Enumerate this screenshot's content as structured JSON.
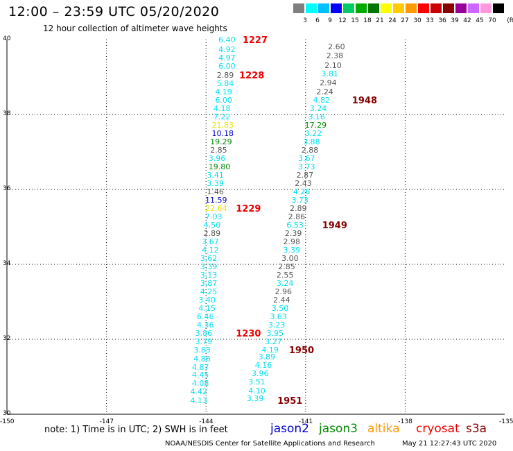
{
  "header": {
    "title": "12:00 – 23:59 UTC 05/20/2020",
    "subtitle": "12 hour collection of altimeter wave heights"
  },
  "legend": {
    "bins": [
      {
        "label": "3",
        "color": "#7f7f7f"
      },
      {
        "label": "6",
        "color": "#00ffff"
      },
      {
        "label": "9",
        "color": "#00bfff"
      },
      {
        "label": "12",
        "color": "#0000ff"
      },
      {
        "label": "15",
        "color": "#00cc66"
      },
      {
        "label": "18",
        "color": "#00aa00"
      },
      {
        "label": "21",
        "color": "#007700"
      },
      {
        "label": "24",
        "color": "#ffff00"
      },
      {
        "label": "27",
        "color": "#ffcc00"
      },
      {
        "label": "30",
        "color": "#ff9900"
      },
      {
        "label": "33",
        "color": "#ff0000"
      },
      {
        "label": "36",
        "color": "#cc0000"
      },
      {
        "label": "39",
        "color": "#880000"
      },
      {
        "label": "42",
        "color": "#990099"
      },
      {
        "label": "45",
        "color": "#cc66ff"
      },
      {
        "label": "70",
        "color": "#ff99dd"
      },
      {
        "label": "",
        "color": "#000000"
      }
    ],
    "unit": "(ft)"
  },
  "axes": {
    "lat_labels": [
      "40",
      "38",
      "36",
      "34",
      "32",
      "30"
    ],
    "lon_labels": [
      "-150",
      "-147",
      "-144",
      "-141",
      "-138",
      "-135"
    ]
  },
  "colors": {
    "gray": "#555555",
    "cyan": "#00e0f0",
    "yellow": "#e6e600",
    "blue": "#0000cc",
    "green": "#008800",
    "red": "#ee0000",
    "darkred": "#880000"
  },
  "tracks": [
    {
      "time_tag": {
        "text": "1227",
        "color": "red",
        "lat": 39.99,
        "lon": -142.9
      },
      "points": [
        {
          "v": "6.40",
          "c": "cyan",
          "lat": 39.99,
          "lon": -143.5
        },
        {
          "v": "4.92",
          "c": "cyan",
          "lat": 39.72,
          "lon": -143.5
        },
        {
          "v": "4.97",
          "c": "cyan",
          "lat": 39.5,
          "lon": -143.5
        },
        {
          "v": "6.00",
          "c": "cyan",
          "lat": 39.27,
          "lon": -143.5
        },
        {
          "v": "2.89",
          "c": "gray",
          "lat": 39.04,
          "lon": -143.55
        },
        {
          "v": "5.84",
          "c": "cyan",
          "lat": 38.82,
          "lon": -143.55
        },
        {
          "v": "4.19",
          "c": "cyan",
          "lat": 38.6,
          "lon": -143.6
        },
        {
          "v": "6.00",
          "c": "cyan",
          "lat": 38.37,
          "lon": -143.6
        },
        {
          "v": "4.18",
          "c": "cyan",
          "lat": 38.15,
          "lon": -143.65
        },
        {
          "v": "7.22",
          "c": "cyan",
          "lat": 37.93,
          "lon": -143.65
        },
        {
          "v": "21.83",
          "c": "yellow",
          "lat": 37.7,
          "lon": -143.7
        },
        {
          "v": "10.18",
          "c": "blue",
          "lat": 37.49,
          "lon": -143.7
        },
        {
          "v": "19.29",
          "c": "green",
          "lat": 37.26,
          "lon": -143.75
        },
        {
          "v": "2.85",
          "c": "gray",
          "lat": 37.04,
          "lon": -143.75
        },
        {
          "v": "3.96",
          "c": "cyan",
          "lat": 36.82,
          "lon": -143.8
        },
        {
          "v": "19.80",
          "c": "green",
          "lat": 36.59,
          "lon": -143.8
        },
        {
          "v": "3.41",
          "c": "cyan",
          "lat": 36.37,
          "lon": -143.85
        },
        {
          "v": "3.39",
          "c": "cyan",
          "lat": 36.15,
          "lon": -143.85
        },
        {
          "v": "1.46",
          "c": "gray",
          "lat": 35.93,
          "lon": -143.85
        },
        {
          "v": "11.59",
          "c": "blue",
          "lat": 35.71,
          "lon": -143.9
        }
      ]
    },
    {
      "time_tag": {
        "text": "1228",
        "color": "red",
        "lat": 39.04,
        "lon": -143.0
      },
      "points": []
    },
    {
      "time_tag": {
        "text": "1229",
        "color": "red",
        "lat": 35.49,
        "lon": -143.1
      },
      "points": [
        {
          "v": "22.64",
          "c": "yellow",
          "lat": 35.49,
          "lon": -143.9
        },
        {
          "v": "7.03",
          "c": "cyan",
          "lat": 35.26,
          "lon": -143.9
        },
        {
          "v": "4.50",
          "c": "cyan",
          "lat": 35.04,
          "lon": -143.95
        },
        {
          "v": "2.89",
          "c": "gray",
          "lat": 34.82,
          "lon": -143.95
        },
        {
          "v": "3.67",
          "c": "cyan",
          "lat": 34.6,
          "lon": -144.0
        },
        {
          "v": "4.12",
          "c": "cyan",
          "lat": 34.37,
          "lon": -144.0
        },
        {
          "v": "3.62",
          "c": "cyan",
          "lat": 34.15,
          "lon": -144.05
        },
        {
          "v": "3.39",
          "c": "cyan",
          "lat": 33.93,
          "lon": -144.05
        },
        {
          "v": "3.13",
          "c": "cyan",
          "lat": 33.7,
          "lon": -144.05
        },
        {
          "v": "3.87",
          "c": "cyan",
          "lat": 33.48,
          "lon": -144.05
        },
        {
          "v": "4.25",
          "c": "cyan",
          "lat": 33.26,
          "lon": -144.05
        },
        {
          "v": "3.40",
          "c": "cyan",
          "lat": 33.04,
          "lon": -144.1
        },
        {
          "v": "4.15",
          "c": "cyan",
          "lat": 32.81,
          "lon": -144.1
        },
        {
          "v": "6.46",
          "c": "cyan",
          "lat": 32.59,
          "lon": -144.15
        },
        {
          "v": "4.36",
          "c": "cyan",
          "lat": 32.37,
          "lon": -144.15
        },
        {
          "v": "3.86",
          "c": "cyan",
          "lat": 32.14,
          "lon": -144.2
        }
      ]
    },
    {
      "time_tag": {
        "text": "1230",
        "color": "red",
        "lat": 32.14,
        "lon": -143.1
      },
      "points": [
        {
          "v": "3.79",
          "c": "cyan",
          "lat": 31.92,
          "lon": -144.2
        },
        {
          "v": "3.83",
          "c": "cyan",
          "lat": 31.7,
          "lon": -144.25
        },
        {
          "v": "4.86",
          "c": "cyan",
          "lat": 31.47,
          "lon": -144.25
        },
        {
          "v": "4.87",
          "c": "cyan",
          "lat": 31.25,
          "lon": -144.3
        },
        {
          "v": "4.45",
          "c": "cyan",
          "lat": 31.03,
          "lon": -144.3
        },
        {
          "v": "4.08",
          "c": "cyan",
          "lat": 30.81,
          "lon": -144.3
        },
        {
          "v": "4.42",
          "c": "cyan",
          "lat": 30.59,
          "lon": -144.35
        },
        {
          "v": "4.13",
          "c": "cyan",
          "lat": 30.36,
          "lon": -144.35
        }
      ]
    },
    {
      "time_tag": {
        "text": "1948",
        "color": "darkred",
        "lat": 38.37,
        "lon": -139.6
      },
      "points": [
        {
          "v": "2.60",
          "c": "gray",
          "lat": 39.79,
          "lon": -140.2
        },
        {
          "v": "2.38",
          "c": "gray",
          "lat": 39.55,
          "lon": -140.25
        },
        {
          "v": "2.10",
          "c": "gray",
          "lat": 39.3,
          "lon": -140.3
        },
        {
          "v": "3.81",
          "c": "cyan",
          "lat": 39.08,
          "lon": -140.4
        },
        {
          "v": "2.94",
          "c": "gray",
          "lat": 38.84,
          "lon": -140.45
        },
        {
          "v": "2.24",
          "c": "gray",
          "lat": 38.6,
          "lon": -140.55
        },
        {
          "v": "4.82",
          "c": "cyan",
          "lat": 38.37,
          "lon": -140.65
        },
        {
          "v": "3.24",
          "c": "cyan",
          "lat": 38.15,
          "lon": -140.75
        },
        {
          "v": "3.16",
          "c": "cyan",
          "lat": 37.93,
          "lon": -140.8
        },
        {
          "v": "17.29",
          "c": "green",
          "lat": 37.71,
          "lon": -140.9
        },
        {
          "v": "3.22",
          "c": "cyan",
          "lat": 37.48,
          "lon": -140.9
        },
        {
          "v": "3.88",
          "c": "cyan",
          "lat": 37.26,
          "lon": -140.95
        },
        {
          "v": "2.88",
          "c": "gray",
          "lat": 37.04,
          "lon": -141.0
        },
        {
          "v": "3.67",
          "c": "cyan",
          "lat": 36.82,
          "lon": -141.1
        },
        {
          "v": "3.73",
          "c": "cyan",
          "lat": 36.59,
          "lon": -141.1
        },
        {
          "v": "2.87",
          "c": "gray",
          "lat": 36.37,
          "lon": -141.15
        },
        {
          "v": "2.43",
          "c": "gray",
          "lat": 36.15,
          "lon": -141.2
        },
        {
          "v": "4.26",
          "c": "cyan",
          "lat": 35.93,
          "lon": -141.25
        },
        {
          "v": "3.73",
          "c": "cyan",
          "lat": 35.71,
          "lon": -141.3
        },
        {
          "v": "2.89",
          "c": "gray",
          "lat": 35.49,
          "lon": -141.35
        },
        {
          "v": "2.86",
          "c": "gray",
          "lat": 35.26,
          "lon": -141.4
        }
      ]
    },
    {
      "time_tag": {
        "text": "1949",
        "color": "darkred",
        "lat": 35.04,
        "lon": -140.5
      },
      "points": [
        {
          "v": "6.53",
          "c": "cyan",
          "lat": 35.04,
          "lon": -141.45
        },
        {
          "v": "2.39",
          "c": "gray",
          "lat": 34.82,
          "lon": -141.5
        },
        {
          "v": "2.98",
          "c": "gray",
          "lat": 34.6,
          "lon": -141.55
        },
        {
          "v": "3.39",
          "c": "cyan",
          "lat": 34.37,
          "lon": -141.55
        },
        {
          "v": "3.00",
          "c": "gray",
          "lat": 34.15,
          "lon": -141.6
        },
        {
          "v": "2.85",
          "c": "gray",
          "lat": 33.93,
          "lon": -141.7
        },
        {
          "v": "2.55",
          "c": "gray",
          "lat": 33.7,
          "lon": -141.75
        },
        {
          "v": "3.24",
          "c": "cyan",
          "lat": 33.48,
          "lon": -141.75
        },
        {
          "v": "2.96",
          "c": "gray",
          "lat": 33.26,
          "lon": -141.8
        },
        {
          "v": "2.44",
          "c": "gray",
          "lat": 33.04,
          "lon": -141.85
        },
        {
          "v": "3.50",
          "c": "cyan",
          "lat": 32.81,
          "lon": -141.9
        },
        {
          "v": "3.63",
          "c": "cyan",
          "lat": 32.59,
          "lon": -141.95
        },
        {
          "v": "3.23",
          "c": "cyan",
          "lat": 32.37,
          "lon": -142.0
        },
        {
          "v": "3.95",
          "c": "cyan",
          "lat": 32.14,
          "lon": -142.05
        },
        {
          "v": "3.27",
          "c": "cyan",
          "lat": 31.92,
          "lon": -142.1
        }
      ]
    },
    {
      "time_tag": {
        "text": "1950",
        "color": "darkred",
        "lat": 31.7,
        "lon": -141.5
      },
      "points": [
        {
          "v": "4.19",
          "c": "cyan",
          "lat": 31.7,
          "lon": -142.2
        },
        {
          "v": "3.89",
          "c": "cyan",
          "lat": 31.52,
          "lon": -142.3
        },
        {
          "v": "4.16",
          "c": "cyan",
          "lat": 31.3,
          "lon": -142.4
        },
        {
          "v": "3.96",
          "c": "cyan",
          "lat": 31.07,
          "lon": -142.5
        },
        {
          "v": "3.51",
          "c": "cyan",
          "lat": 30.85,
          "lon": -142.6
        },
        {
          "v": "4.10",
          "c": "cyan",
          "lat": 30.62,
          "lon": -142.6
        },
        {
          "v": "3.39",
          "c": "cyan",
          "lat": 30.4,
          "lon": -142.65
        }
      ]
    },
    {
      "time_tag": {
        "text": "1951",
        "color": "darkred",
        "lat": 30.36,
        "lon": -141.85
      },
      "points": []
    }
  ],
  "footer": {
    "note": "note: 1) Time is in UTC; 2) SWH is in feet",
    "satellites": [
      {
        "name": "jason2",
        "color": "#0000cc"
      },
      {
        "name": "jason3",
        "color": "#008800"
      },
      {
        "name": "altika",
        "color": "#ff9900"
      },
      {
        "name": "cryosat",
        "color": "#ee0000"
      },
      {
        "name": "s3a",
        "color": "#880000"
      }
    ],
    "credit": "NOAA/NESDIS Center for Satellite Applications and Research",
    "timestamp": "May 21 12:27:43 UTC 2020"
  }
}
